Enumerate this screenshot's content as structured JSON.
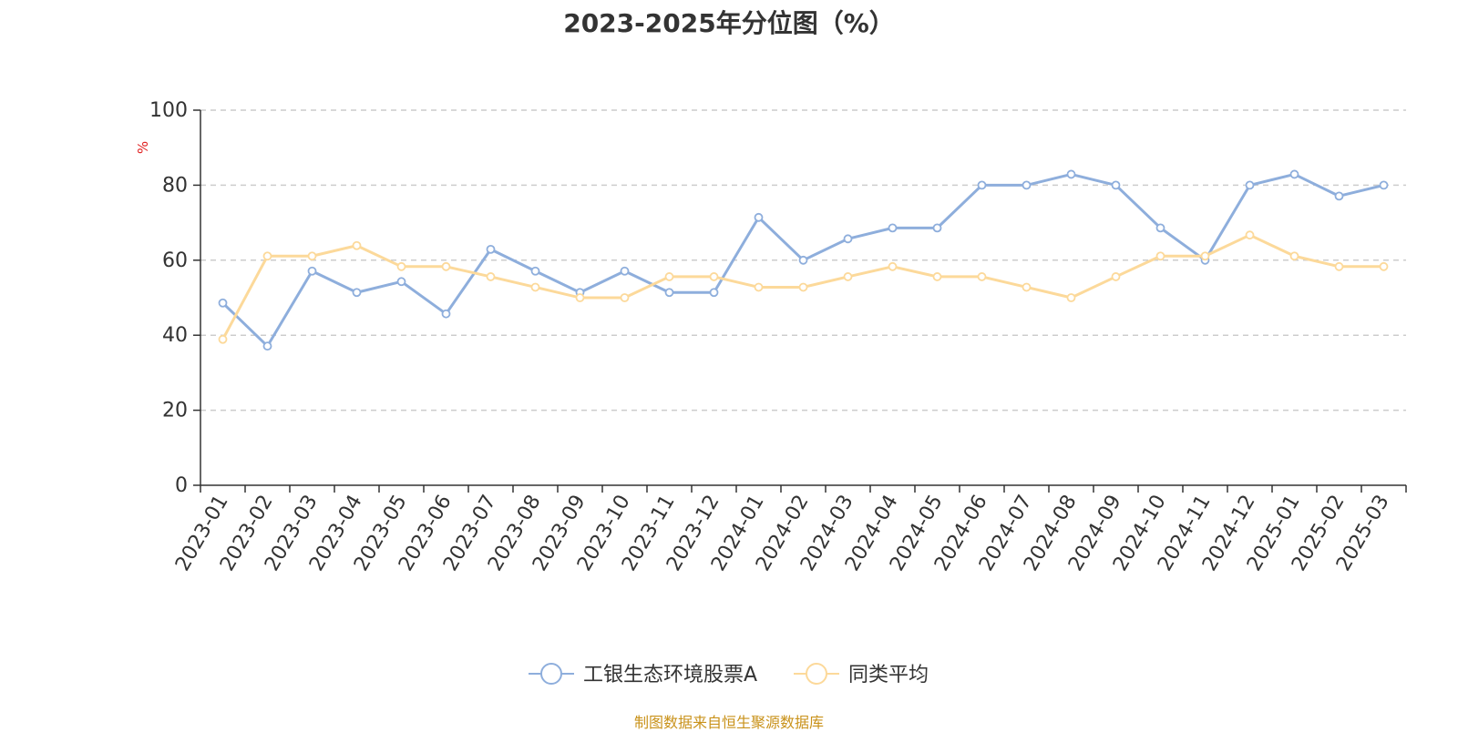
{
  "chart_data": {
    "type": "line",
    "title": "2023-2025年分位图（%）",
    "ylabel": "%",
    "ylim": [
      0,
      100
    ],
    "yticks": [
      0,
      20,
      40,
      60,
      80,
      100
    ],
    "grid": true,
    "legend_position": "bottom",
    "categories": [
      "2023-01",
      "2023-02",
      "2023-03",
      "2023-04",
      "2023-05",
      "2023-06",
      "2023-07",
      "2023-08",
      "2023-09",
      "2023-10",
      "2023-11",
      "2023-12",
      "2024-01",
      "2024-02",
      "2024-03",
      "2024-04",
      "2024-05",
      "2024-06",
      "2024-07",
      "2024-08",
      "2024-09",
      "2024-10",
      "2024-11",
      "2024-12",
      "2025-01",
      "2025-02",
      "2025-03"
    ],
    "series": [
      {
        "name": "工银生态环境股票A",
        "color": "#8eaedc",
        "values": [
          48.6,
          37.1,
          57.1,
          51.4,
          54.3,
          45.7,
          62.9,
          57.1,
          51.4,
          57.1,
          51.4,
          51.4,
          71.4,
          60.0,
          65.7,
          68.6,
          68.6,
          80.0,
          80.0,
          82.9,
          80.0,
          68.6,
          60.0,
          80.0,
          82.9,
          77.1,
          80.0
        ]
      },
      {
        "name": "同类平均",
        "color": "#fcd99a",
        "values": [
          38.9,
          61.1,
          61.1,
          63.9,
          58.3,
          58.3,
          55.6,
          52.8,
          50.0,
          50.0,
          55.6,
          55.6,
          52.8,
          52.8,
          55.6,
          58.3,
          55.6,
          55.6,
          52.8,
          50.0,
          55.6,
          61.1,
          61.1,
          66.7,
          61.1,
          58.3,
          58.3
        ]
      }
    ]
  },
  "source_text": "制图数据来自恒生聚源数据库"
}
